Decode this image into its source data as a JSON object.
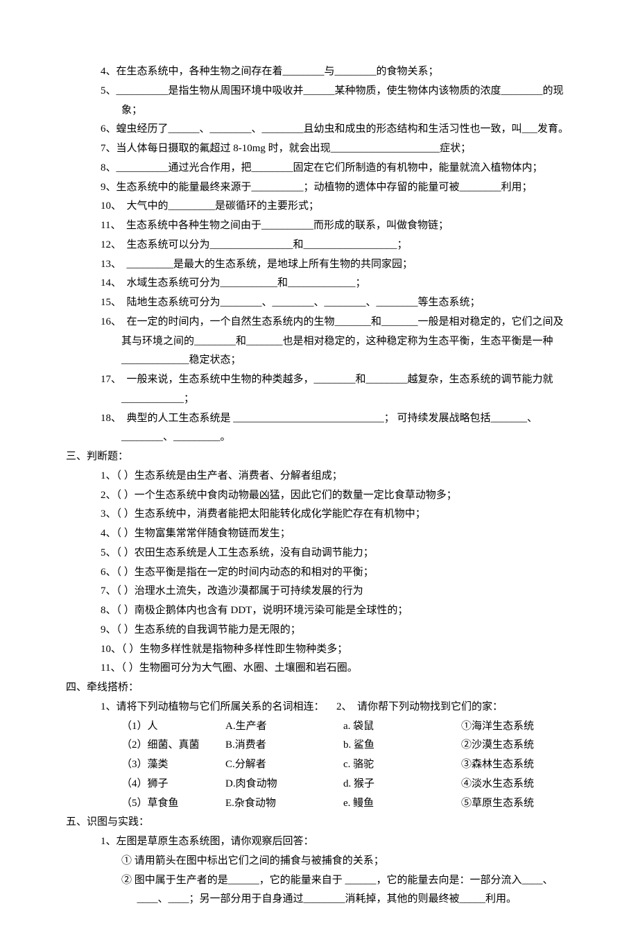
{
  "fill": {
    "q4": "4、在生态系统中，各种生物之间存在着________与________的食物关系；",
    "q5": "5、__________是指生物从周围环境中吸收并______某种物质，使生物体内该物质的浓度________的现象；",
    "q6": "6、蝗虫经历了______、________、________且幼虫和成虫的形态结构和生活习性也一致，叫___发育。",
    "q7": "7、当人体每日摄取的氟超过 8-10mg 时，就会出现_____________________症状；",
    "q8": "8、__________通过光合作用，把________固定在它们所制造的有机物中，能量就流入植物体内；",
    "q9": "9、生态系统中的能量最终来源于__________；动植物的遗体中存留的能量可被________利用；",
    "q10": "10、　大气中的_________是碳循环的主要形式；",
    "q11": "11、　生态系统中各种生物之间由于__________而形成的联系，叫做食物链；",
    "q12": "12、　生态系统可以分为________________和__________________；",
    "q13": "13、　_________是最大的生态系统，是地球上所有生物的共同家园；",
    "q14": "14、　水域生态系统可分为___________和_____________；",
    "q15": "15、　陆地生态系统可分为________、________、________、________等生态系统；",
    "q16": "16、　在一定的时间内，一个自然生态系统内的生物_______和_______一般是相对稳定的，它们之间及其与环境之间的________和_______也是相对稳定的，这种稳定称为生态平衡，生态平衡是一种_____________稳定状态；",
    "q17": "17、　一般来说，生态系统中生物的种类越多，________和________越复杂，生态系统的调节能力就____________；",
    "q18": "18、　典型的人工生态系统是 _____________________________； 可持续发展战略包括_______、________、_________。"
  },
  "judge": {
    "title": "三、判断题：",
    "q1": "1、（  ）生态系统是由生产者、消费者、分解者组成；",
    "q2": "2、（  ）一个生态系统中食肉动物最凶猛，因此它们的数量一定比食草动物多；",
    "q3": "3、（  ）生态系统中，消费者能把太阳能转化成化学能贮存在有机物中；",
    "q4": "4、（  ）生物富集常常伴随食物链而发生；",
    "q5": "5、（  ）农田生态系统是人工生态系统，没有自动调节能力；",
    "q6": "6、（  ）生态平衡是指在一定的时间内动态的和相对的平衡；",
    "q7": "7、（  ）治理水土流失，改造沙漠都属于可持续发展的行为",
    "q8": "8、（  ）南极企鹅体内也含有 DDT，说明环境污染可能是全球性的；",
    "q9": "9、（  ）生态系统的自我调节能力是无限的；",
    "q10": "10、（  ）生物多样性就是指物种多样性即生物种类多；",
    "q11": "11、（  ）生物圈可分为大气圈、水圈、土壤圈和岩石圈。"
  },
  "match": {
    "title": "四、牵线搭桥：",
    "head1": "1、请将下列动植物与它们所属关系的名词相连：",
    "head2": "2、　请你帮下列动物找到它们的家：",
    "rows": [
      {
        "c1": "（1）人",
        "c2": "A.生产者",
        "c3": "a. 袋鼠",
        "c4": "①海洋生态系统"
      },
      {
        "c1": "（2）细菌、真菌",
        "c2": "B.消费者",
        "c3": "b. 鲨鱼",
        "c4": "②沙漠生态系统"
      },
      {
        "c1": "（3）藻类",
        "c2": "C.分解者",
        "c3": "c. 骆驼",
        "c4": "③森林生态系统"
      },
      {
        "c1": "（4）狮子",
        "c2": "D.肉食动物",
        "c3": "d. 猴子",
        "c4": "④淡水生态系统"
      },
      {
        "c1": "（5）草食鱼",
        "c2": "E.杂食动物",
        "c3": "e. 鳗鱼",
        "c4": "⑤草原生态系统"
      }
    ]
  },
  "diagram": {
    "title": "五、识图与实践：",
    "q1": "1、左图是草原生态系统图，请你观察后回答：",
    "sub1": "① 请用箭头在图中标出它们之间的捕食与被捕食的关系；",
    "sub2": "② 图中属于生产者的是______，它的能量来自于 ______，它的能量去向是：一部分流入____、____、____；另一部分用于自身通过________消耗掉，其他的则最终被_____利用。"
  }
}
